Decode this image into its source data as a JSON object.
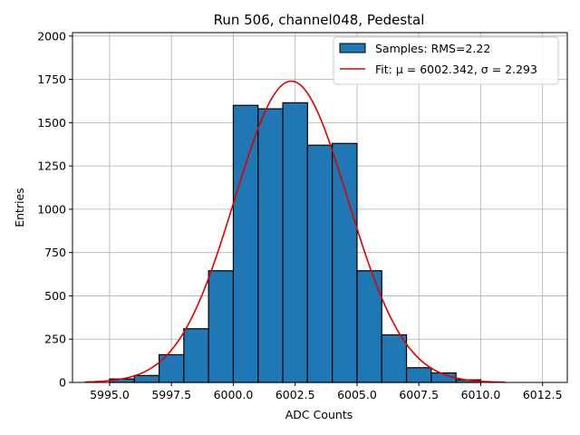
{
  "chart_data": {
    "type": "bar",
    "title": "Run 506, channel048, Pedestal",
    "xlabel": "ADC Counts",
    "ylabel": "Entries",
    "xlim": [
      5993.5,
      6013.5
    ],
    "ylim": [
      0,
      2020
    ],
    "xticks": [
      5995.0,
      5997.5,
      6000.0,
      6002.5,
      6005.0,
      6007.5,
      6010.0,
      6012.5
    ],
    "xtick_labels": [
      "5995.0",
      "5997.5",
      "6000.0",
      "6002.5",
      "6005.0",
      "6007.5",
      "6010.0",
      "6012.5"
    ],
    "yticks": [
      0,
      250,
      500,
      750,
      1000,
      1250,
      1500,
      1750,
      2000
    ],
    "ytick_labels": [
      "0",
      "250",
      "500",
      "750",
      "1000",
      "1250",
      "1500",
      "1750",
      "2000"
    ],
    "grid": true,
    "legend_position": "top-right",
    "bar_color": "#1f77b4",
    "fit_color": "#e00000",
    "histogram": {
      "name": "Samples: RMS=2.22",
      "bin_edges": [
        5995,
        5996,
        5997,
        5998,
        5999,
        6000,
        6001,
        6002,
        6003,
        6004,
        6005,
        6006,
        6007,
        6008,
        6009,
        6010
      ],
      "counts": [
        20,
        40,
        160,
        310,
        645,
        1600,
        1580,
        1615,
        1370,
        1380,
        645,
        275,
        85,
        55,
        15
      ]
    },
    "fit": {
      "name": "Fit: μ = 6002.342, σ = 2.293",
      "mu": 6002.342,
      "sigma": 2.293,
      "amplitude": 1740,
      "x_range": [
        5994,
        6011
      ]
    }
  }
}
